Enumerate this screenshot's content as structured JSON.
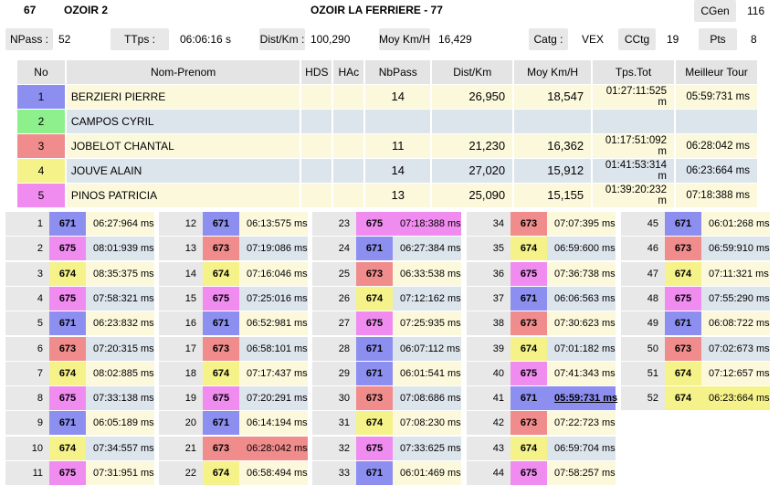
{
  "header": {
    "race_no": "67",
    "track": "OZOIR 2",
    "title": "OZOIR LA FERRIERE - 77",
    "cgen_label": "CGen",
    "cgen_value": "116",
    "npass_label": "NPass :",
    "npass_value": "52",
    "ttps_label": "TTps :",
    "ttps_value": "06:06:16 s",
    "dist_label": "Dist/Km :",
    "dist_value": "100,290",
    "moy_label": "Moy Km/H",
    "moy_value": "16,429",
    "catg_label": "Catg :",
    "catg_value": "VEX",
    "cctg_label": "CCtg",
    "cctg_value": "19",
    "pts_label": "Pts",
    "pts_value": "8"
  },
  "colors": {
    "c1": "#8c8ff0",
    "c2": "#8ef08c",
    "c3": "#f08c8c",
    "c4": "#f5f28a",
    "c5": "#f08cf0"
  },
  "table": {
    "headers": [
      "No",
      "Nom-Prenom",
      "HDS",
      "HAc",
      "NbPass",
      "Dist/Km",
      "Moy Km/H",
      "Tps.Tot",
      "Meilleur Tour"
    ],
    "rows": [
      {
        "no": "1",
        "name": "BERZIERI PIERRE",
        "hds": "",
        "hac": "",
        "nbpass": "14",
        "dist": "26,950",
        "moy": "18,547",
        "tps": "01:27:11:525 m",
        "best": "05:59:731 ms",
        "color": "#8c8ff0"
      },
      {
        "no": "2",
        "name": "CAMPOS CYRIL",
        "hds": "",
        "hac": "",
        "nbpass": "",
        "dist": "",
        "moy": "",
        "tps": "",
        "best": "",
        "color": "#8ef08c"
      },
      {
        "no": "3",
        "name": "JOBELOT CHANTAL",
        "hds": "",
        "hac": "",
        "nbpass": "11",
        "dist": "21,230",
        "moy": "16,362",
        "tps": "01:17:51:092 m",
        "best": "06:28:042 ms",
        "color": "#f08c8c"
      },
      {
        "no": "4",
        "name": "JOUVE ALAIN",
        "hds": "",
        "hac": "",
        "nbpass": "14",
        "dist": "27,020",
        "moy": "15,912",
        "tps": "01:41:53:314 m",
        "best": "06:23:664 ms",
        "color": "#f5f28a"
      },
      {
        "no": "5",
        "name": "PINOS PATRICIA",
        "hds": "",
        "hac": "",
        "nbpass": "13",
        "dist": "25,090",
        "moy": "15,155",
        "tps": "01:39:20:232 m",
        "best": "07:18:388 ms",
        "color": "#f08cf0"
      }
    ]
  },
  "laps": [
    {
      "n": "1",
      "car": "671",
      "time": "06:27:964 ms"
    },
    {
      "n": "2",
      "car": "675",
      "time": "08:01:939 ms"
    },
    {
      "n": "3",
      "car": "674",
      "time": "08:35:375 ms"
    },
    {
      "n": "4",
      "car": "675",
      "time": "07:58:321 ms"
    },
    {
      "n": "5",
      "car": "671",
      "time": "06:23:832 ms"
    },
    {
      "n": "6",
      "car": "673",
      "time": "07:20:315 ms"
    },
    {
      "n": "7",
      "car": "674",
      "time": "08:02:885 ms"
    },
    {
      "n": "8",
      "car": "675",
      "time": "07:33:138 ms"
    },
    {
      "n": "9",
      "car": "671",
      "time": "06:05:189 ms"
    },
    {
      "n": "10",
      "car": "674",
      "time": "07:34:557 ms"
    },
    {
      "n": "11",
      "car": "675",
      "time": "07:31:951 ms"
    },
    {
      "n": "12",
      "car": "671",
      "time": "06:13:575 ms"
    },
    {
      "n": "13",
      "car": "673",
      "time": "07:19:086 ms"
    },
    {
      "n": "14",
      "car": "674",
      "time": "07:16:046 ms"
    },
    {
      "n": "15",
      "car": "675",
      "time": "07:25:016 ms"
    },
    {
      "n": "16",
      "car": "671",
      "time": "06:52:981 ms"
    },
    {
      "n": "17",
      "car": "673",
      "time": "06:58:101 ms"
    },
    {
      "n": "18",
      "car": "674",
      "time": "07:17:437 ms"
    },
    {
      "n": "19",
      "car": "675",
      "time": "07:20:291 ms"
    },
    {
      "n": "20",
      "car": "671",
      "time": "06:14:194 ms"
    },
    {
      "n": "21",
      "car": "673",
      "time": "06:28:042 ms",
      "hl": "#f08c8c"
    },
    {
      "n": "22",
      "car": "674",
      "time": "06:58:494 ms"
    },
    {
      "n": "23",
      "car": "675",
      "time": "07:18:388 ms",
      "hl": "#f08cf0"
    },
    {
      "n": "24",
      "car": "671",
      "time": "06:27:384 ms"
    },
    {
      "n": "25",
      "car": "673",
      "time": "06:33:538 ms"
    },
    {
      "n": "26",
      "car": "674",
      "time": "07:12:162 ms"
    },
    {
      "n": "27",
      "car": "675",
      "time": "07:25:935 ms"
    },
    {
      "n": "28",
      "car": "671",
      "time": "06:07:112 ms"
    },
    {
      "n": "29",
      "car": "671",
      "time": "06:01:541 ms"
    },
    {
      "n": "30",
      "car": "673",
      "time": "07:08:686 ms"
    },
    {
      "n": "31",
      "car": "674",
      "time": "07:08:230 ms"
    },
    {
      "n": "32",
      "car": "675",
      "time": "07:33:625 ms"
    },
    {
      "n": "33",
      "car": "671",
      "time": "06:01:469 ms"
    },
    {
      "n": "34",
      "car": "673",
      "time": "07:07:395 ms"
    },
    {
      "n": "35",
      "car": "674",
      "time": "06:59:600 ms"
    },
    {
      "n": "36",
      "car": "675",
      "time": "07:36:738 ms"
    },
    {
      "n": "37",
      "car": "671",
      "time": "06:06:563 ms"
    },
    {
      "n": "38",
      "car": "673",
      "time": "07:30:623 ms"
    },
    {
      "n": "39",
      "car": "674",
      "time": "07:01:182 ms"
    },
    {
      "n": "40",
      "car": "675",
      "time": "07:41:343 ms"
    },
    {
      "n": "41",
      "car": "671",
      "time": "05:59:731 ms",
      "hl": "#8c8ff0",
      "best": true
    },
    {
      "n": "42",
      "car": "673",
      "time": "07:22:723 ms"
    },
    {
      "n": "43",
      "car": "674",
      "time": "06:59:704 ms"
    },
    {
      "n": "44",
      "car": "675",
      "time": "07:58:257 ms"
    },
    {
      "n": "45",
      "car": "671",
      "time": "06:01:268 ms"
    },
    {
      "n": "46",
      "car": "673",
      "time": "06:59:910 ms"
    },
    {
      "n": "47",
      "car": "674",
      "time": "07:11:321 ms"
    },
    {
      "n": "48",
      "car": "675",
      "time": "07:55:290 ms"
    },
    {
      "n": "49",
      "car": "671",
      "time": "06:08:722 ms"
    },
    {
      "n": "50",
      "car": "673",
      "time": "07:02:673 ms"
    },
    {
      "n": "51",
      "car": "674",
      "time": "07:12:657 ms"
    },
    {
      "n": "52",
      "car": "674",
      "time": "06:23:664 ms",
      "hl": "#f5f28a"
    }
  ]
}
